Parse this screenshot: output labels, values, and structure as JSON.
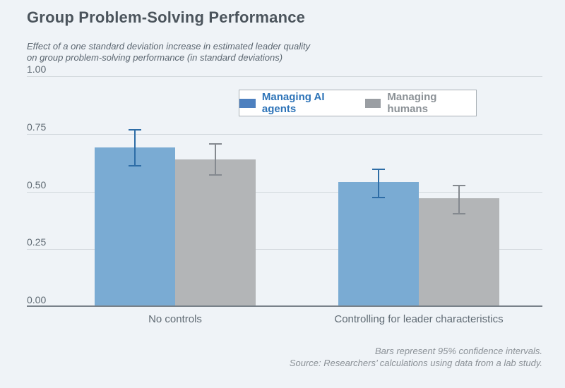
{
  "title": "Group Problem-Solving Performance",
  "subtitle_line1": "Effect of a one standard deviation increase in estimated leader quality",
  "subtitle_line2": "on group problem-solving performance (in standard deviations)",
  "legend": {
    "items": [
      {
        "label": "Managing AI agents",
        "swatch_color": "#4d80bf",
        "text_color": "#2e74b8"
      },
      {
        "label": "Managing humans",
        "swatch_color": "#9a9ea3",
        "text_color": "#8b9196"
      }
    ]
  },
  "footer_line1": "Bars represent 95% confidence intervals.",
  "footer_line2": "Source: Researchers’ calculations using data from a lab study.",
  "colors": {
    "background": "#eff3f7",
    "gridline": "#d3d9de",
    "axis_line": "#79828a",
    "title_text": "#4b545c",
    "tick_text": "#5f6a73",
    "subtitle_text": "#5b6670",
    "footer_text": "#8a9096",
    "legend_border": "#a9b0b6",
    "legend_background": "#ffffff"
  },
  "chart_data": {
    "type": "bar",
    "categories": [
      "No controls",
      "Controlling for leader characteristics"
    ],
    "series": [
      {
        "name": "Managing AI agents",
        "values": [
          0.69,
          0.54
        ],
        "ci_low": [
          0.61,
          0.47
        ],
        "ci_high": [
          0.77,
          0.6
        ],
        "bar_color": "#7aabd3",
        "error_color": "#2e6da6"
      },
      {
        "name": "Managing humans",
        "values": [
          0.64,
          0.47
        ],
        "ci_low": [
          0.57,
          0.4
        ],
        "ci_high": [
          0.71,
          0.53
        ],
        "bar_color": "#b3b5b7",
        "error_color": "#84898f"
      }
    ],
    "ylim": [
      0,
      1
    ],
    "yticks": [
      0,
      0.25,
      0.5,
      0.75,
      1
    ],
    "ytick_labels": [
      "0.00",
      "0.25",
      "0.50",
      "0.75",
      "1.00"
    ],
    "grid": true,
    "legend_position": "top-center",
    "error_bars": "95% confidence intervals"
  }
}
